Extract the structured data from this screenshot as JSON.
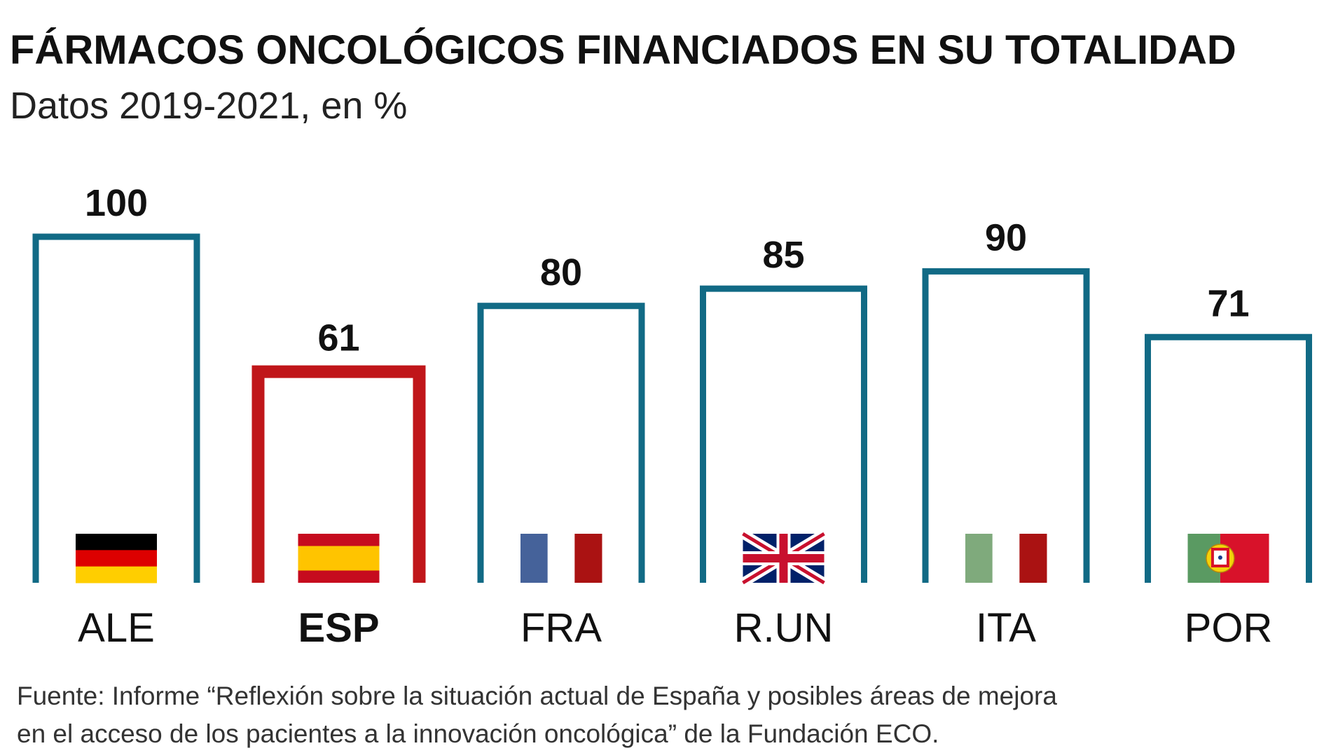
{
  "header": {
    "title": "FÁRMACOS ONCOLÓGICOS FINANCIADOS EN SU TOTALIDAD",
    "subtitle": "Datos 2019-2021, en %"
  },
  "footer": {
    "source_line1": "Fuente: Informe “Reflexión sobre la situación actual de España y posibles áreas de mejora",
    "source_line2": "en el acceso de los pacientes a la innovación oncológica” de la Fundación ECO."
  },
  "chart_data": {
    "type": "bar",
    "title": "FÁRMACOS ONCOLÓGICOS FINANCIADOS EN SU TOTALIDAD",
    "subtitle": "Datos 2019-2021, en %",
    "xlabel": "",
    "ylabel": "",
    "ylim": [
      0,
      100
    ],
    "grid": false,
    "legend": "none",
    "categories": [
      "ALE",
      "ESP",
      "FRA",
      "R.UN",
      "ITA",
      "POR"
    ],
    "values": [
      100,
      61,
      80,
      85,
      90,
      71
    ],
    "value_labels": [
      "100",
      "61",
      "80",
      "85",
      "90",
      "71"
    ],
    "highlight": "ESP",
    "flags": [
      "germany-flag",
      "spain-flag",
      "france-flag",
      "uk-flag",
      "italy-flag",
      "portugal-flag"
    ]
  },
  "colors": {
    "bar_outline": "#116a85",
    "highlight_outline": "#c0161a",
    "text": "#111111",
    "germany": [
      "#000000",
      "#dd0000",
      "#ffce00"
    ],
    "spain": [
      "#c60b1e",
      "#ffc400"
    ],
    "france": [
      "#45629a",
      "#ffffff",
      "#aa1212"
    ],
    "italy": [
      "#7faa7c",
      "#ffffff",
      "#aa1212"
    ],
    "uk": [
      "#012169",
      "#ffffff",
      "#c8102e"
    ],
    "portugal": [
      "#5a9a62",
      "#d8122a",
      "#f4d20a"
    ]
  }
}
